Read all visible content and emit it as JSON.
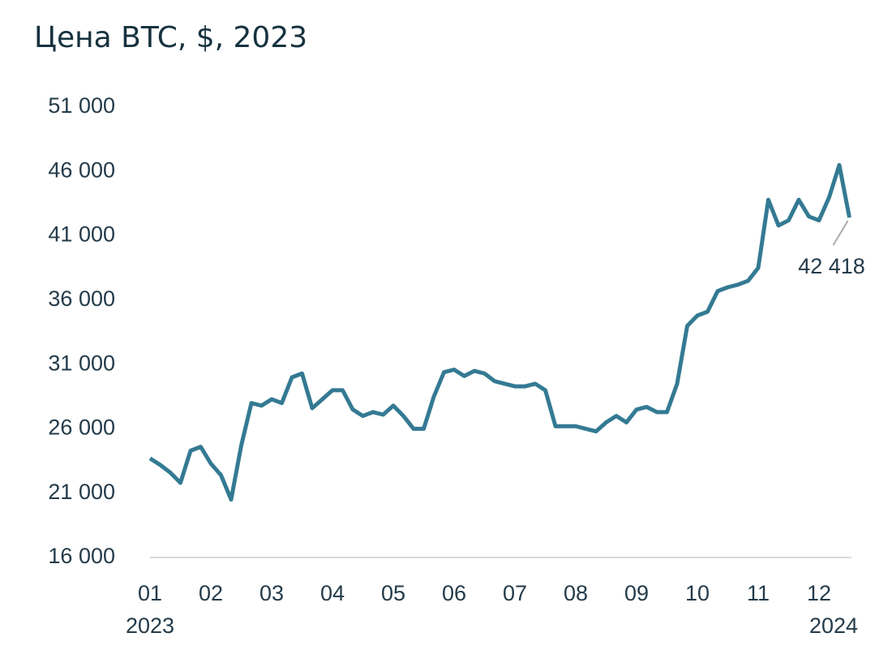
{
  "chart_data": {
    "type": "line",
    "title": "Цена BTC, $, 2023",
    "categories": [
      "01",
      null,
      null,
      null,
      null,
      null,
      "02",
      null,
      null,
      null,
      null,
      null,
      "03",
      null,
      null,
      null,
      null,
      null,
      "04",
      null,
      null,
      null,
      null,
      null,
      "05",
      null,
      null,
      null,
      null,
      null,
      "06",
      null,
      null,
      null,
      null,
      null,
      "07",
      null,
      null,
      null,
      null,
      null,
      "08",
      null,
      null,
      null,
      null,
      null,
      "09",
      null,
      null,
      null,
      null,
      null,
      "10",
      null,
      null,
      null,
      null,
      null,
      "11",
      null,
      null,
      null,
      null,
      null,
      "12",
      null,
      null,
      null
    ],
    "sublabels": [
      "2023",
      null,
      null,
      null,
      null,
      null,
      null,
      null,
      null,
      null,
      null,
      null,
      null,
      null,
      null,
      null,
      null,
      null,
      null,
      null,
      null,
      null,
      null,
      null,
      null,
      null,
      null,
      null,
      null,
      null,
      null,
      null,
      null,
      null,
      null,
      null,
      null,
      null,
      null,
      null,
      null,
      null,
      null,
      null,
      null,
      null,
      null,
      null,
      null,
      null,
      null,
      null,
      null,
      null,
      null,
      null,
      null,
      null,
      null,
      null,
      null,
      null,
      null,
      null,
      null,
      null,
      "2024",
      null,
      null,
      null
    ],
    "series": [
      {
        "name": "BTC",
        "color": "#347a93",
        "values": [
          23700,
          23200,
          22600,
          21800,
          24300,
          24600,
          23300,
          22400,
          20500,
          24700,
          28000,
          27800,
          28300,
          28000,
          30000,
          30300,
          27600,
          28300,
          29000,
          29000,
          27500,
          27000,
          27300,
          27100,
          27800,
          27000,
          26000,
          26000,
          28500,
          30400,
          30600,
          30100,
          30500,
          30300,
          29700,
          29500,
          29300,
          29300,
          29500,
          29000,
          26200,
          26200,
          26200,
          26000,
          25800,
          26500,
          27000,
          26500,
          27500,
          27700,
          27300,
          27300,
          29500,
          34000,
          34800,
          35100,
          36700,
          37000,
          37200,
          37500,
          38500,
          43800,
          41800,
          42200,
          43800,
          42500,
          42200,
          44000,
          46500,
          42418
        ],
        "value_labels": [
          null,
          null,
          null,
          null,
          null,
          null,
          null,
          null,
          null,
          null,
          null,
          null,
          null,
          null,
          null,
          null,
          null,
          null,
          null,
          null,
          null,
          null,
          null,
          null,
          null,
          null,
          null,
          null,
          null,
          null,
          null,
          null,
          null,
          null,
          null,
          null,
          null,
          null,
          null,
          null,
          null,
          null,
          null,
          null,
          null,
          null,
          null,
          null,
          null,
          null,
          null,
          null,
          null,
          null,
          null,
          null,
          null,
          null,
          null,
          null,
          null,
          null,
          null,
          null,
          null,
          null,
          null,
          null,
          null,
          "42 418"
        ]
      }
    ],
    "ylim": [
      16000,
      51000
    ],
    "yticks": [
      {
        "value": 16000,
        "label": "16 000"
      },
      {
        "value": 21000,
        "label": "21 000"
      },
      {
        "value": 26000,
        "label": "26 000"
      },
      {
        "value": 31000,
        "label": "31 000"
      },
      {
        "value": 36000,
        "label": "36 000"
      },
      {
        "value": 41000,
        "label": "41 000"
      },
      {
        "value": 46000,
        "label": "46 000"
      },
      {
        "value": 51000,
        "label": "51 000"
      }
    ]
  }
}
